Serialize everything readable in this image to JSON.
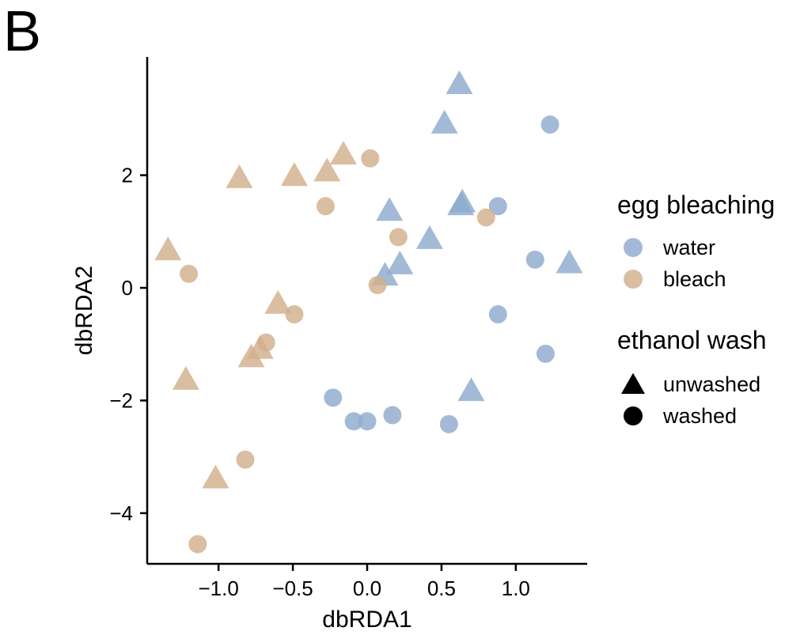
{
  "panel_label": "B",
  "colors": {
    "water": "#8fabcd",
    "bleach": "#d2b08c"
  },
  "chart_data": {
    "type": "scatter",
    "xlabel": "dbRDA1",
    "ylabel": "dbRDA2",
    "xlim": [
      -1.48,
      1.48
    ],
    "ylim": [
      -4.9,
      4.1
    ],
    "xticks": [
      -1.0,
      -0.5,
      0.0,
      0.5,
      1.0
    ],
    "xtick_labels": [
      "−1.0",
      "−0.5",
      "0.0",
      "0.5",
      "1.0"
    ],
    "yticks": [
      -4,
      -2,
      0,
      2
    ],
    "ytick_labels": [
      "−4",
      "−2",
      "0",
      "2"
    ],
    "legends": [
      {
        "title": "egg bleaching",
        "entries": [
          "water",
          "bleach"
        ]
      },
      {
        "title": "ethanol wash",
        "entries": [
          "unwashed",
          "washed"
        ]
      }
    ],
    "points": [
      {
        "x": 0.62,
        "y": 3.6,
        "bleaching": "water",
        "wash": "unwashed"
      },
      {
        "x": 0.52,
        "y": 2.9,
        "bleaching": "water",
        "wash": "unwashed"
      },
      {
        "x": 0.64,
        "y": 1.5,
        "bleaching": "water",
        "wash": "unwashed"
      },
      {
        "x": 0.63,
        "y": 1.45,
        "bleaching": "water",
        "wash": "unwashed"
      },
      {
        "x": 0.15,
        "y": 1.35,
        "bleaching": "water",
        "wash": "unwashed"
      },
      {
        "x": 0.42,
        "y": 0.85,
        "bleaching": "water",
        "wash": "unwashed"
      },
      {
        "x": 0.22,
        "y": 0.4,
        "bleaching": "water",
        "wash": "unwashed"
      },
      {
        "x": 0.12,
        "y": 0.2,
        "bleaching": "water",
        "wash": "unwashed"
      },
      {
        "x": 1.36,
        "y": 0.42,
        "bleaching": "water",
        "wash": "unwashed"
      },
      {
        "x": 0.7,
        "y": -1.85,
        "bleaching": "water",
        "wash": "unwashed"
      },
      {
        "x": 1.23,
        "y": 2.9,
        "bleaching": "water",
        "wash": "washed"
      },
      {
        "x": 0.88,
        "y": 1.45,
        "bleaching": "water",
        "wash": "washed"
      },
      {
        "x": 1.13,
        "y": 0.5,
        "bleaching": "water",
        "wash": "washed"
      },
      {
        "x": 0.88,
        "y": -0.47,
        "bleaching": "water",
        "wash": "washed"
      },
      {
        "x": 1.2,
        "y": -1.17,
        "bleaching": "water",
        "wash": "washed"
      },
      {
        "x": -0.23,
        "y": -1.95,
        "bleaching": "water",
        "wash": "washed"
      },
      {
        "x": -0.09,
        "y": -2.37,
        "bleaching": "water",
        "wash": "washed"
      },
      {
        "x": 0.0,
        "y": -2.37,
        "bleaching": "water",
        "wash": "washed"
      },
      {
        "x": 0.17,
        "y": -2.26,
        "bleaching": "water",
        "wash": "washed"
      },
      {
        "x": 0.55,
        "y": -2.42,
        "bleaching": "water",
        "wash": "washed"
      },
      {
        "x": -0.16,
        "y": 2.35,
        "bleaching": "bleach",
        "wash": "unwashed"
      },
      {
        "x": -0.27,
        "y": 2.05,
        "bleaching": "bleach",
        "wash": "unwashed"
      },
      {
        "x": -0.49,
        "y": 1.97,
        "bleaching": "bleach",
        "wash": "unwashed"
      },
      {
        "x": -0.86,
        "y": 1.93,
        "bleaching": "bleach",
        "wash": "unwashed"
      },
      {
        "x": -1.34,
        "y": 0.65,
        "bleaching": "bleach",
        "wash": "unwashed"
      },
      {
        "x": -0.6,
        "y": -0.3,
        "bleaching": "bleach",
        "wash": "unwashed"
      },
      {
        "x": -0.72,
        "y": -1.1,
        "bleaching": "bleach",
        "wash": "unwashed"
      },
      {
        "x": -0.78,
        "y": -1.25,
        "bleaching": "bleach",
        "wash": "unwashed"
      },
      {
        "x": -1.22,
        "y": -1.65,
        "bleaching": "bleach",
        "wash": "unwashed"
      },
      {
        "x": -1.02,
        "y": -3.4,
        "bleaching": "bleach",
        "wash": "unwashed"
      },
      {
        "x": 0.02,
        "y": 2.3,
        "bleaching": "bleach",
        "wash": "washed"
      },
      {
        "x": -0.28,
        "y": 1.45,
        "bleaching": "bleach",
        "wash": "washed"
      },
      {
        "x": 0.21,
        "y": 0.9,
        "bleaching": "bleach",
        "wash": "washed"
      },
      {
        "x": 0.8,
        "y": 1.25,
        "bleaching": "bleach",
        "wash": "washed"
      },
      {
        "x": 0.07,
        "y": 0.05,
        "bleaching": "bleach",
        "wash": "washed"
      },
      {
        "x": -1.2,
        "y": 0.25,
        "bleaching": "bleach",
        "wash": "washed"
      },
      {
        "x": -0.49,
        "y": -0.47,
        "bleaching": "bleach",
        "wash": "washed"
      },
      {
        "x": -0.68,
        "y": -0.97,
        "bleaching": "bleach",
        "wash": "washed"
      },
      {
        "x": -0.82,
        "y": -3.05,
        "bleaching": "bleach",
        "wash": "washed"
      },
      {
        "x": -1.14,
        "y": -4.55,
        "bleaching": "bleach",
        "wash": "washed"
      }
    ]
  }
}
